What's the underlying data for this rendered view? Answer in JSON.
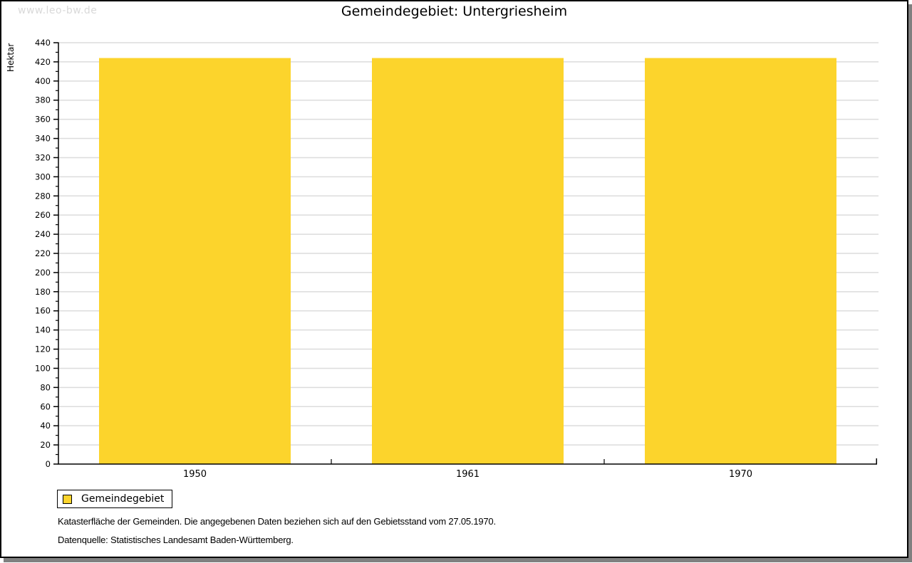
{
  "watermark": "www.leo-bw.de",
  "title": "Gemeindegebiet: Untergriesheim",
  "y_axis_label": "Hektar",
  "legend": {
    "label": "Gemeindegebiet"
  },
  "footnote": "Katasterfläche der Gemeinden. Die angegebenen Daten beziehen sich auf den Gebietsstand vom 27.05.1970.",
  "source": "Datenquelle: Statistisches Landesamt Baden-Württemberg.",
  "chart_data": {
    "type": "bar",
    "categories": [
      "1950",
      "1961",
      "1970"
    ],
    "series": [
      {
        "name": "Gemeindegebiet",
        "values": [
          424,
          424,
          424
        ]
      }
    ],
    "title": "Gemeindegebiet: Untergriesheim",
    "xlabel": "",
    "ylabel": "Hektar",
    "ylim": [
      0,
      440
    ],
    "ytick_step": 20,
    "y_minor_step": 10,
    "grid": "horizontal-major-only",
    "legend_position": "bottom-left",
    "colors": {
      "bar": "#fcd42c",
      "axis": "#000000",
      "gridline": "#dcdcdc",
      "watermark_text": "#d9d9d9",
      "frame_shadow": "#808080"
    }
  }
}
